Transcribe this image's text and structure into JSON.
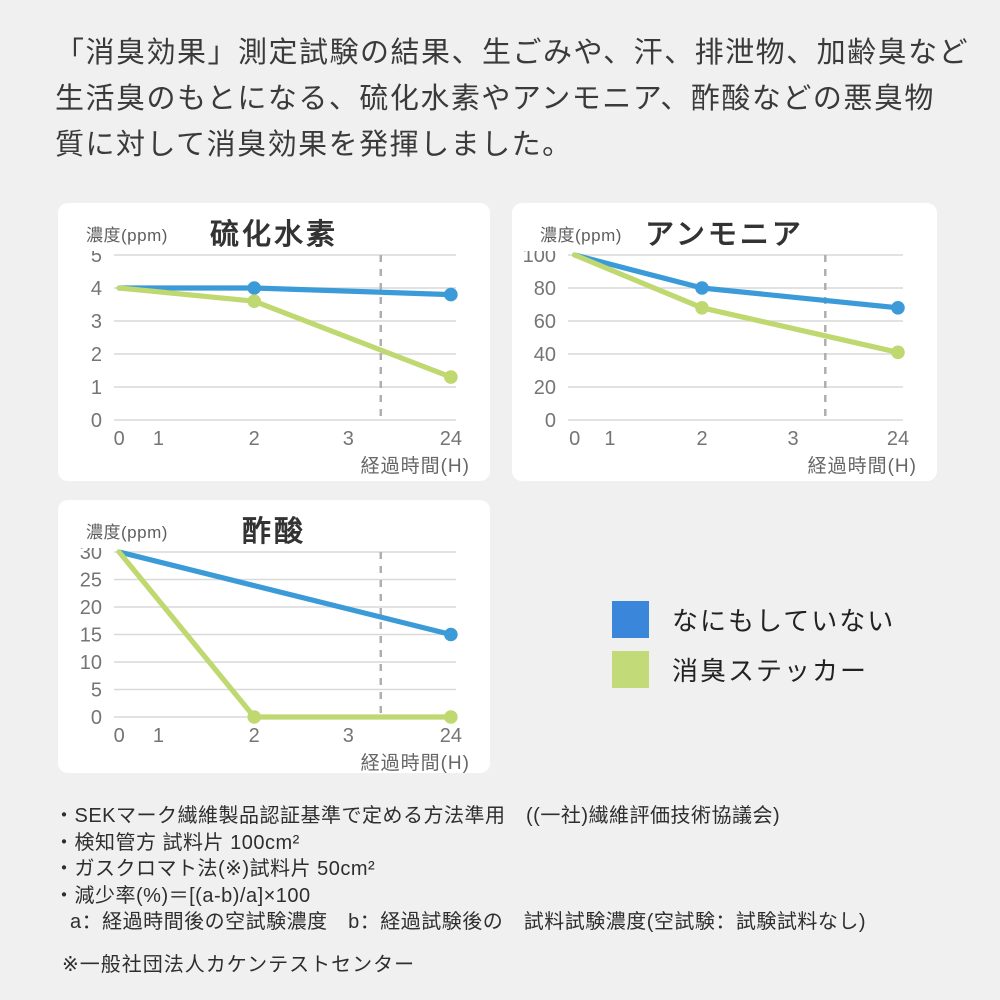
{
  "header": {
    "lines": [
      "「消臭効果」測定試験の結果、生ごみや、汗、排泄物、加齢臭など",
      "生活臭のもとになる、硫化水素やアンモニア、酢酸などの悪臭物",
      "質に対して消臭効果を発揮しました。"
    ]
  },
  "chart_data": [
    {
      "type": "line",
      "title": "硫化水素",
      "ylabel": "濃度(ppm)",
      "xlabel": "経過時間(H)",
      "ylim": [
        0,
        5
      ],
      "y_ticks": [
        5,
        4,
        3,
        2,
        1,
        0
      ],
      "x_ticks": [
        "0",
        "1",
        "2",
        "3",
        "24"
      ],
      "x_tick_pos": [
        0.015,
        0.13,
        0.41,
        0.685,
        0.985
      ],
      "divider_pos": 0.78,
      "grid": true,
      "series": [
        {
          "name": "なにもしていない",
          "color": "#3B9BD8",
          "x": [
            "0",
            "2",
            "24"
          ],
          "values": [
            4,
            4,
            3.8
          ],
          "markers": [
            "2",
            "24"
          ]
        },
        {
          "name": "消臭ステッカー",
          "color": "#BFD870",
          "x": [
            "0",
            "2",
            "24"
          ],
          "values": [
            4,
            3.6,
            1.3
          ],
          "markers": [
            "2",
            "24"
          ]
        }
      ]
    },
    {
      "type": "line",
      "title": "アンモニア",
      "ylabel": "濃度(ppm)",
      "xlabel": "経過時間(H)",
      "ylim": [
        0,
        100
      ],
      "y_ticks": [
        100,
        80,
        60,
        40,
        20,
        0
      ],
      "x_ticks": [
        "0",
        "1",
        "2",
        "3",
        "24"
      ],
      "x_tick_pos": [
        0.02,
        0.125,
        0.4,
        0.672,
        0.985
      ],
      "divider_pos": 0.768,
      "grid": true,
      "series": [
        {
          "name": "なにもしていない",
          "color": "#3B9BD8",
          "x": [
            "0",
            "2",
            "24"
          ],
          "values": [
            100,
            80,
            68
          ],
          "markers": [
            "2",
            "24"
          ]
        },
        {
          "name": "消臭ステッカー",
          "color": "#BFD870",
          "x": [
            "0",
            "2",
            "24"
          ],
          "values": [
            100,
            68,
            41
          ],
          "markers": [
            "2",
            "24"
          ]
        }
      ]
    },
    {
      "type": "line",
      "title": "酢酸",
      "ylabel": "濃度(ppm)",
      "xlabel": "経過時間(H)",
      "ylim": [
        0,
        30
      ],
      "y_ticks": [
        30,
        25,
        20,
        15,
        10,
        5,
        0
      ],
      "x_ticks": [
        "0",
        "1",
        "2",
        "3",
        "24"
      ],
      "x_tick_pos": [
        0.015,
        0.13,
        0.41,
        0.685,
        0.985
      ],
      "divider_pos": 0.78,
      "grid": true,
      "series": [
        {
          "name": "なにもしていない",
          "color": "#3B9BD8",
          "x": [
            "0",
            "24"
          ],
          "values": [
            30,
            15
          ],
          "markers": [
            "24"
          ]
        },
        {
          "name": "消臭ステッカー",
          "color": "#BFD870",
          "x": [
            "0",
            "2",
            "24"
          ],
          "values": [
            30,
            0,
            0
          ],
          "markers": [
            "2",
            "24"
          ]
        }
      ]
    }
  ],
  "legend": {
    "items": [
      {
        "label": "なにもしていない",
        "color": "#3A86DB"
      },
      {
        "label": "消臭ステッカー",
        "color": "#C3DA78"
      }
    ]
  },
  "footnotes": {
    "lines": [
      "・SEKマーク繊維製品認証基準で定める方法準用　((一社)繊維評価技術協議会)",
      "・検知管方 試料片 100cm²",
      "・ガスクロマト法(※)試料片 50cm²",
      "・減少率(%)＝[(a-b)/a]×100",
      "a：経過時間後の空試験濃度　b：経過試験後の　試料試験濃度(空試験：試験試料なし)"
    ],
    "lab": "※一般社団法人カケンテストセンター"
  }
}
